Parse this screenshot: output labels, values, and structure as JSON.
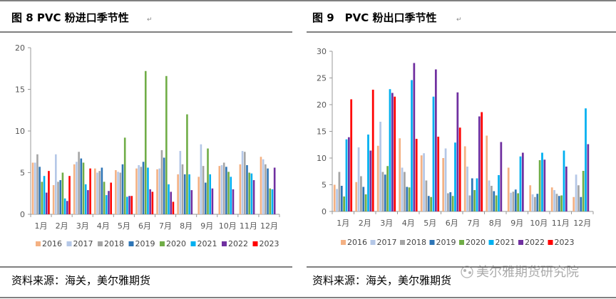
{
  "panels": [
    {
      "title": "图 8 PVC 粉进口季节性",
      "source": "资料来源：海关，美尔雅期货"
    },
    {
      "title": "图 9　PVC 粉出口季节性",
      "source": "资料来源：海关，美尔雅期货"
    }
  ],
  "watermark": "美尔雅期货研究院",
  "chart_data": [
    {
      "type": "bar",
      "categories": [
        "1月",
        "2月",
        "3月",
        "4月",
        "5月",
        "6月",
        "7月",
        "8月",
        "9月",
        "10月",
        "11月",
        "12月"
      ],
      "ylim": [
        0,
        20
      ],
      "yticks": [
        0,
        5,
        10,
        15,
        20
      ],
      "grid": false,
      "legend_position": "bottom",
      "series": [
        {
          "name": "2016",
          "color": "#f4b183",
          "values": [
            6.2,
            3.5,
            6.0,
            5.5,
            5.3,
            5.5,
            5.4,
            4.8,
            4.5,
            5.8,
            6.0,
            6.9
          ]
        },
        {
          "name": "2017",
          "color": "#b4c7e7",
          "values": [
            6.2,
            7.2,
            6.3,
            5.0,
            5.1,
            5.9,
            5.5,
            7.6,
            8.4,
            5.9,
            7.6,
            6.6
          ]
        },
        {
          "name": "2018",
          "color": "#a5a5a5",
          "values": [
            7.2,
            3.9,
            7.5,
            5.2,
            5.0,
            5.7,
            7.7,
            6.0,
            5.8,
            6.2,
            7.5,
            6.0
          ]
        },
        {
          "name": "2019",
          "color": "#2e75b6",
          "values": [
            5.7,
            4.1,
            6.7,
            5.6,
            6.0,
            6.3,
            6.8,
            4.8,
            3.8,
            5.7,
            5.9,
            5.5
          ]
        },
        {
          "name": "2020",
          "color": "#70ad47",
          "values": [
            3.9,
            5.0,
            6.2,
            3.9,
            9.2,
            17.2,
            16.6,
            12.0,
            7.9,
            5.1,
            5.0,
            3.1
          ]
        },
        {
          "name": "2021",
          "color": "#00b0f0",
          "values": [
            4.6,
            1.9,
            3.6,
            2.3,
            2.1,
            5.6,
            3.6,
            4.8,
            4.8,
            4.5,
            4.9,
            3.0
          ]
        },
        {
          "name": "2022",
          "color": "#7030a0",
          "values": [
            2.6,
            1.6,
            2.9,
            2.8,
            2.2,
            3.0,
            2.7,
            2.9,
            3.1,
            3.0,
            4.1,
            5.6
          ]
        },
        {
          "name": "2023",
          "color": "#ff0000",
          "values": [
            5.2,
            4.6,
            5.5,
            3.8,
            2.2,
            2.7,
            1.5,
            null,
            null,
            null,
            null,
            null
          ]
        }
      ]
    },
    {
      "type": "bar",
      "categories": [
        "1月",
        "2月",
        "3月",
        "4月",
        "5月",
        "6月",
        "7月",
        "8月",
        "9月",
        "10月",
        "11月",
        "12月"
      ],
      "ylim": [
        0,
        30
      ],
      "yticks": [
        0,
        5,
        10,
        15,
        20,
        25,
        30
      ],
      "grid": false,
      "legend_position": "bottom",
      "series": [
        {
          "name": "2016",
          "color": "#f4b183",
          "values": [
            5.0,
            5.5,
            12.3,
            13.7,
            10.5,
            10.0,
            12.2,
            14.2,
            8.2,
            4.9,
            4.5,
            2.7
          ]
        },
        {
          "name": "2017",
          "color": "#b4c7e7",
          "values": [
            4.2,
            12.0,
            16.8,
            8.2,
            10.9,
            11.8,
            8.4,
            5.8,
            3.5,
            3.2,
            4.0,
            6.9
          ]
        },
        {
          "name": "2018",
          "color": "#a5a5a5",
          "values": [
            7.4,
            6.6,
            7.4,
            7.4,
            5.8,
            3.4,
            3.0,
            4.8,
            3.7,
            2.7,
            3.3,
            4.9
          ]
        },
        {
          "name": "2019",
          "color": "#2e75b6",
          "values": [
            4.8,
            4.6,
            6.9,
            4.6,
            2.9,
            3.6,
            6.2,
            3.8,
            4.1,
            3.3,
            2.9,
            2.7
          ]
        },
        {
          "name": "2020",
          "color": "#70ad47",
          "values": [
            2.8,
            3.2,
            8.5,
            4.5,
            2.7,
            2.9,
            4.0,
            3.0,
            3.4,
            9.6,
            3.0,
            7.6
          ]
        },
        {
          "name": "2021",
          "color": "#00b0f0",
          "values": [
            13.5,
            14.4,
            22.9,
            24.6,
            21.5,
            12.9,
            6.2,
            6.8,
            10.3,
            11.0,
            11.4,
            19.3
          ]
        },
        {
          "name": "2022",
          "color": "#7030a0",
          "values": [
            13.9,
            11.4,
            22.2,
            27.8,
            26.6,
            22.3,
            17.8,
            13.0,
            11.0,
            9.7,
            8.4,
            12.6
          ]
        },
        {
          "name": "2023",
          "color": "#ff0000",
          "values": [
            21.0,
            22.8,
            21.5,
            13.6,
            14.0,
            15.7,
            18.6,
            null,
            null,
            null,
            null,
            null
          ]
        }
      ]
    }
  ]
}
